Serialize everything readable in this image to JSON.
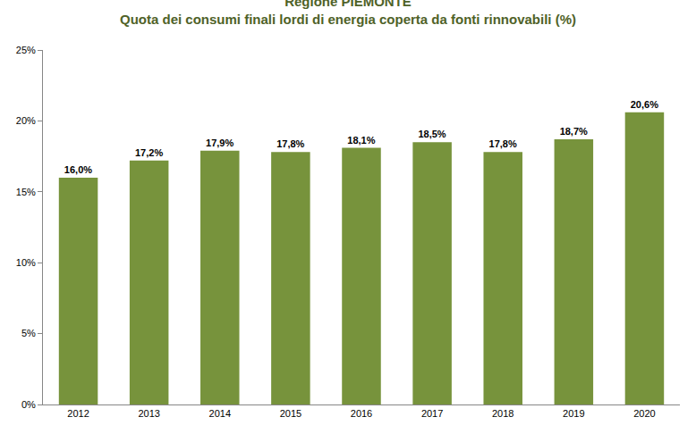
{
  "chart_data": {
    "type": "bar",
    "title": "Regione PIEMONTE",
    "subtitle": "Quota dei consumi finali lordi di energia coperta da fonti rinnovabili (%)",
    "categories": [
      "2012",
      "2013",
      "2014",
      "2015",
      "2016",
      "2017",
      "2018",
      "2019",
      "2020"
    ],
    "values": [
      16.0,
      17.2,
      17.9,
      17.8,
      18.1,
      18.5,
      17.8,
      18.7,
      20.6
    ],
    "value_labels": [
      "16,0%",
      "17,2%",
      "17,9%",
      "17,8%",
      "18,1%",
      "18,5%",
      "17,8%",
      "18,7%",
      "20,6%"
    ],
    "color": "#77933c",
    "ylim": [
      0,
      25
    ],
    "yticks": [
      {
        "value": 0,
        "label": "0%"
      },
      {
        "value": 5,
        "label": "5%"
      },
      {
        "value": 10,
        "label": "10%"
      },
      {
        "value": 15,
        "label": "15%"
      },
      {
        "value": 20,
        "label": "20%"
      },
      {
        "value": 25,
        "label": "25%"
      }
    ],
    "grid": false,
    "data_labels": true
  }
}
